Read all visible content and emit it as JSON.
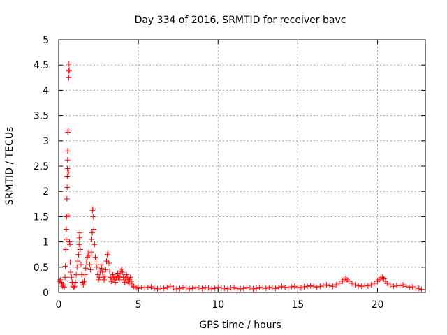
{
  "chart_data": {
    "type": "scatter",
    "title": "Day 334 of 2016, SRMTID for receiver bavc",
    "xlabel": "GPS time / hours",
    "ylabel": "SRMTID / TECUs",
    "xlim": [
      0,
      23
    ],
    "ylim": [
      0,
      5
    ],
    "xticks": [
      0,
      5,
      10,
      15,
      20
    ],
    "xtick_labels": [
      "0",
      "5",
      "10",
      "15",
      "20"
    ],
    "yticks": [
      0,
      0.5,
      1,
      1.5,
      2,
      2.5,
      3,
      3.5,
      4,
      4.5,
      5
    ],
    "ytick_labels": [
      "0",
      "0.5",
      "1",
      "1.5",
      "2",
      "2.5",
      "3",
      "3.5",
      "4",
      "4.5",
      "5"
    ],
    "grid": true,
    "marker": "+",
    "colors": {
      "series": "#ff0000",
      "grid": "#a0a0a0",
      "axis": "#000000"
    },
    "series": [
      {
        "name": "SRMTID",
        "points": [
          [
            0.05,
            0.22
          ],
          [
            0.1,
            0.25
          ],
          [
            0.15,
            0.2
          ],
          [
            0.2,
            0.18
          ],
          [
            0.25,
            0.12
          ],
          [
            0.3,
            0.15
          ],
          [
            0.35,
            0.1
          ],
          [
            0.4,
            0.3
          ],
          [
            0.42,
            0.52
          ],
          [
            0.45,
            0.85
          ],
          [
            0.47,
            1.05
          ],
          [
            0.48,
            1.25
          ],
          [
            0.5,
            1.5
          ],
          [
            0.52,
            1.85
          ],
          [
            0.53,
            2.08
          ],
          [
            0.54,
            2.3
          ],
          [
            0.55,
            2.45
          ],
          [
            0.56,
            2.62
          ],
          [
            0.57,
            2.8
          ],
          [
            0.58,
            3.17
          ],
          [
            0.6,
            3.2
          ],
          [
            0.6,
            1.52
          ],
          [
            0.62,
            2.38
          ],
          [
            0.63,
            4.25
          ],
          [
            0.64,
            4.38
          ],
          [
            0.65,
            4.52
          ],
          [
            0.66,
            4.4
          ],
          [
            0.68,
            1.0
          ],
          [
            0.7,
            0.95
          ],
          [
            0.72,
            0.6
          ],
          [
            0.75,
            0.4
          ],
          [
            0.8,
            0.3
          ],
          [
            0.85,
            0.2
          ],
          [
            0.9,
            0.12
          ],
          [
            0.95,
            0.1
          ],
          [
            1.0,
            0.12
          ],
          [
            1.05,
            0.2
          ],
          [
            1.1,
            0.35
          ],
          [
            1.15,
            0.5
          ],
          [
            1.2,
            0.62
          ],
          [
            1.25,
            0.75
          ],
          [
            1.28,
            0.95
          ],
          [
            1.3,
            1.08
          ],
          [
            1.33,
            1.18
          ],
          [
            1.35,
            0.85
          ],
          [
            1.4,
            0.55
          ],
          [
            1.45,
            0.35
          ],
          [
            1.5,
            0.2
          ],
          [
            1.55,
            0.15
          ],
          [
            1.6,
            0.22
          ],
          [
            1.65,
            0.35
          ],
          [
            1.7,
            0.48
          ],
          [
            1.75,
            0.6
          ],
          [
            1.8,
            0.7
          ],
          [
            1.85,
            0.78
          ],
          [
            1.9,
            0.72
          ],
          [
            1.95,
            0.55
          ],
          [
            2.0,
            0.45
          ],
          [
            2.05,
            0.8
          ],
          [
            2.08,
            1.05
          ],
          [
            2.1,
            1.18
          ],
          [
            2.12,
            1.62
          ],
          [
            2.14,
            1.65
          ],
          [
            2.16,
            1.5
          ],
          [
            2.2,
            1.25
          ],
          [
            2.25,
            0.95
          ],
          [
            2.3,
            0.7
          ],
          [
            2.35,
            0.6
          ],
          [
            2.4,
            0.5
          ],
          [
            2.45,
            0.35
          ],
          [
            2.5,
            0.25
          ],
          [
            2.55,
            0.3
          ],
          [
            2.6,
            0.42
          ],
          [
            2.65,
            0.55
          ],
          [
            2.7,
            0.48
          ],
          [
            2.75,
            0.4
          ],
          [
            2.8,
            0.3
          ],
          [
            2.85,
            0.25
          ],
          [
            2.9,
            0.32
          ],
          [
            2.95,
            0.45
          ],
          [
            3.0,
            0.62
          ],
          [
            3.05,
            0.75
          ],
          [
            3.1,
            0.78
          ],
          [
            3.15,
            0.58
          ],
          [
            3.2,
            0.42
          ],
          [
            3.25,
            0.3
          ],
          [
            3.3,
            0.22
          ],
          [
            3.35,
            0.28
          ],
          [
            3.4,
            0.35
          ],
          [
            3.45,
            0.3
          ],
          [
            3.5,
            0.25
          ],
          [
            3.55,
            0.2
          ],
          [
            3.6,
            0.28
          ],
          [
            3.65,
            0.32
          ],
          [
            3.7,
            0.38
          ],
          [
            3.75,
            0.3
          ],
          [
            3.8,
            0.25
          ],
          [
            3.85,
            0.32
          ],
          [
            3.9,
            0.42
          ],
          [
            3.95,
            0.46
          ],
          [
            4.0,
            0.4
          ],
          [
            4.05,
            0.3
          ],
          [
            4.1,
            0.25
          ],
          [
            4.15,
            0.2
          ],
          [
            4.2,
            0.28
          ],
          [
            4.25,
            0.35
          ],
          [
            4.3,
            0.3
          ],
          [
            4.35,
            0.22
          ],
          [
            4.4,
            0.18
          ],
          [
            4.45,
            0.25
          ],
          [
            4.5,
            0.3
          ],
          [
            4.55,
            0.22
          ],
          [
            4.6,
            0.15
          ],
          [
            4.7,
            0.12
          ],
          [
            4.8,
            0.1
          ],
          [
            4.9,
            0.09
          ],
          [
            5.0,
            0.08
          ],
          [
            5.2,
            0.1
          ],
          [
            5.4,
            0.09
          ],
          [
            5.6,
            0.1
          ],
          [
            5.8,
            0.11
          ],
          [
            6.0,
            0.08
          ],
          [
            6.2,
            0.07
          ],
          [
            6.4,
            0.09
          ],
          [
            6.6,
            0.08
          ],
          [
            6.8,
            0.1
          ],
          [
            7.0,
            0.12
          ],
          [
            7.2,
            0.09
          ],
          [
            7.4,
            0.07
          ],
          [
            7.6,
            0.08
          ],
          [
            7.8,
            0.1
          ],
          [
            8.0,
            0.09
          ],
          [
            8.2,
            0.07
          ],
          [
            8.4,
            0.08
          ],
          [
            8.6,
            0.1
          ],
          [
            8.8,
            0.09
          ],
          [
            9.0,
            0.08
          ],
          [
            9.2,
            0.1
          ],
          [
            9.4,
            0.09
          ],
          [
            9.6,
            0.07
          ],
          [
            9.8,
            0.08
          ],
          [
            10.0,
            0.1
          ],
          [
            10.2,
            0.09
          ],
          [
            10.4,
            0.08
          ],
          [
            10.6,
            0.07
          ],
          [
            10.8,
            0.09
          ],
          [
            11.0,
            0.1
          ],
          [
            11.2,
            0.08
          ],
          [
            11.4,
            0.07
          ],
          [
            11.6,
            0.08
          ],
          [
            11.8,
            0.1
          ],
          [
            12.0,
            0.09
          ],
          [
            12.2,
            0.07
          ],
          [
            12.4,
            0.08
          ],
          [
            12.6,
            0.1
          ],
          [
            12.8,
            0.09
          ],
          [
            13.0,
            0.08
          ],
          [
            13.2,
            0.1
          ],
          [
            13.4,
            0.09
          ],
          [
            13.6,
            0.08
          ],
          [
            13.8,
            0.1
          ],
          [
            14.0,
            0.12
          ],
          [
            14.2,
            0.1
          ],
          [
            14.4,
            0.09
          ],
          [
            14.6,
            0.11
          ],
          [
            14.8,
            0.12
          ],
          [
            15.0,
            0.1
          ],
          [
            15.2,
            0.09
          ],
          [
            15.4,
            0.11
          ],
          [
            15.6,
            0.12
          ],
          [
            15.8,
            0.13
          ],
          [
            16.0,
            0.12
          ],
          [
            16.2,
            0.1
          ],
          [
            16.4,
            0.12
          ],
          [
            16.6,
            0.14
          ],
          [
            16.8,
            0.15
          ],
          [
            17.0,
            0.13
          ],
          [
            17.2,
            0.12
          ],
          [
            17.4,
            0.15
          ],
          [
            17.6,
            0.18
          ],
          [
            17.8,
            0.22
          ],
          [
            17.9,
            0.25
          ],
          [
            18.0,
            0.28
          ],
          [
            18.1,
            0.25
          ],
          [
            18.2,
            0.22
          ],
          [
            18.4,
            0.18
          ],
          [
            18.6,
            0.15
          ],
          [
            18.8,
            0.13
          ],
          [
            19.0,
            0.12
          ],
          [
            19.2,
            0.14
          ],
          [
            19.4,
            0.13
          ],
          [
            19.6,
            0.15
          ],
          [
            19.8,
            0.18
          ],
          [
            20.0,
            0.22
          ],
          [
            20.1,
            0.25
          ],
          [
            20.2,
            0.28
          ],
          [
            20.3,
            0.3
          ],
          [
            20.4,
            0.27
          ],
          [
            20.5,
            0.22
          ],
          [
            20.6,
            0.18
          ],
          [
            20.8,
            0.15
          ],
          [
            21.0,
            0.12
          ],
          [
            21.2,
            0.14
          ],
          [
            21.4,
            0.13
          ],
          [
            21.6,
            0.15
          ],
          [
            21.8,
            0.12
          ],
          [
            22.0,
            0.1
          ],
          [
            22.2,
            0.11
          ],
          [
            22.4,
            0.09
          ],
          [
            22.6,
            0.08
          ],
          [
            22.75,
            0.06
          ]
        ]
      }
    ]
  }
}
